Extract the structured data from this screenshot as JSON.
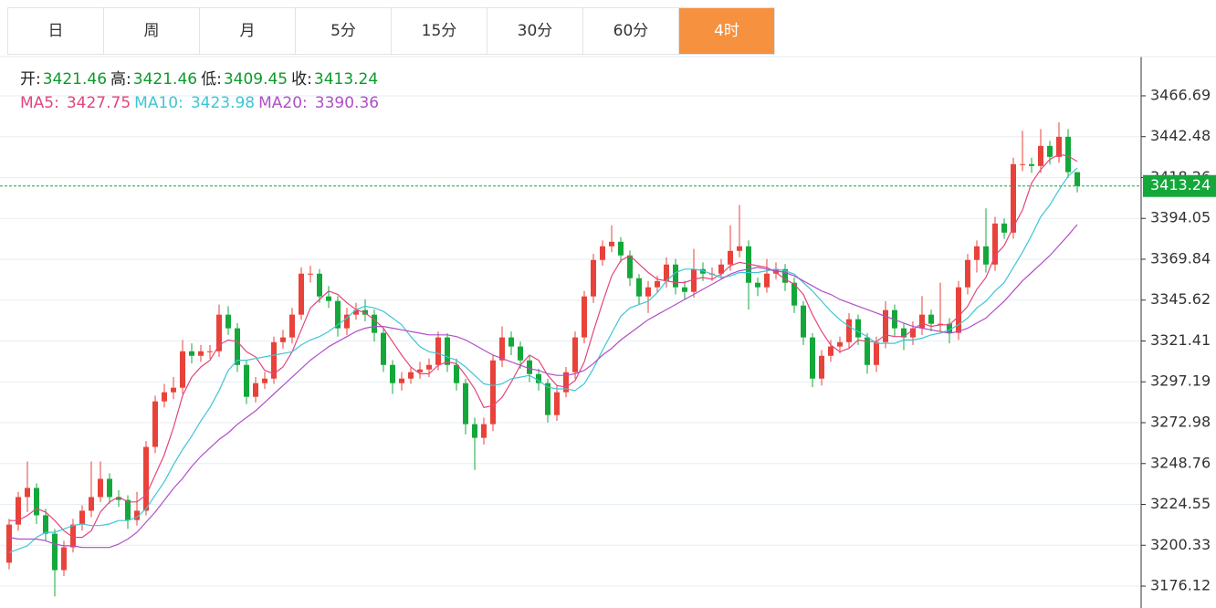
{
  "tabs": [
    "日",
    "周",
    "月",
    "5分",
    "15分",
    "30分",
    "60分",
    "4时"
  ],
  "active_tab": 7,
  "chart_data": {
    "type": "candlestick",
    "up_color": "#e8423a",
    "down_color": "#14a83b",
    "ohlc_labels": [
      "开:",
      "高:",
      "低:",
      "收:"
    ],
    "ylim": [
      3163.15,
      3489.93
    ],
    "yticks": [
      3466.69,
      3442.48,
      3418.26,
      3394.05,
      3369.84,
      3345.62,
      3321.41,
      3297.19,
      3272.98,
      3248.76,
      3224.55,
      3200.33,
      3176.12
    ],
    "grid": true,
    "ohlc": [
      [
        3190,
        3216,
        3186,
        3212.6
      ],
      [
        3212.6,
        3232,
        3209,
        3228.9
      ],
      [
        3228.9,
        3250,
        3220,
        3234.3
      ],
      [
        3234.3,
        3237,
        3213,
        3218.1
      ],
      [
        3218.1,
        3222,
        3203,
        3207.2
      ],
      [
        3207.2,
        3210,
        3170,
        3185.6
      ],
      [
        3185.6,
        3203,
        3182,
        3199.1
      ],
      [
        3199.1,
        3216,
        3196,
        3212.6
      ],
      [
        3212.6,
        3224,
        3209,
        3220.8
      ],
      [
        3220.8,
        3250,
        3217,
        3228.9
      ],
      [
        3228.9,
        3250,
        3226,
        3239.7
      ],
      [
        3239.7,
        3243,
        3225,
        3228.9
      ],
      [
        3228.9,
        3233,
        3223,
        3227.2
      ],
      [
        3227.2,
        3230,
        3210,
        3215.3
      ],
      [
        3215.3,
        3232,
        3212,
        3220.8
      ],
      [
        3220.8,
        3262,
        3218,
        3258.6
      ],
      [
        3258.6,
        3289,
        3255,
        3285.6
      ],
      [
        3285.6,
        3296,
        3282,
        3291.0
      ],
      [
        3291.0,
        3300,
        3287,
        3293.7
      ],
      [
        3293.7,
        3322,
        3290,
        3315.3
      ],
      [
        3315.3,
        3320,
        3308,
        3312.6
      ],
      [
        3312.6,
        3319,
        3309,
        3315.3
      ],
      [
        3315.3,
        3319,
        3311,
        3315.3
      ],
      [
        3315.3,
        3343,
        3312,
        3337.0
      ],
      [
        3337.0,
        3342,
        3325,
        3328.9
      ],
      [
        3328.9,
        3332,
        3303,
        3307.2
      ],
      [
        3307.2,
        3310,
        3284,
        3288.3
      ],
      [
        3288.3,
        3300,
        3285,
        3296.4
      ],
      [
        3296.4,
        3303,
        3293,
        3299.1
      ],
      [
        3299.1,
        3324,
        3296,
        3320.7
      ],
      [
        3320.7,
        3328,
        3317,
        3323.5
      ],
      [
        3323.5,
        3341,
        3320,
        3337.0
      ],
      [
        3337.0,
        3365,
        3334,
        3361.3
      ],
      [
        3361.3,
        3366,
        3356,
        3361.3
      ],
      [
        3361.3,
        3364,
        3344,
        3347.8
      ],
      [
        3347.8,
        3354,
        3341,
        3345.1
      ],
      [
        3345.1,
        3348,
        3324,
        3328.9
      ],
      [
        3328.9,
        3341,
        3325,
        3337.0
      ],
      [
        3337.0,
        3344,
        3334,
        3339.7
      ],
      [
        3339.7,
        3346,
        3333,
        3337.0
      ],
      [
        3337.0,
        3340,
        3321,
        3326.2
      ],
      [
        3326.2,
        3329,
        3303,
        3307.2
      ],
      [
        3307.2,
        3310,
        3290,
        3296.4
      ],
      [
        3296.4,
        3303,
        3292,
        3299.1
      ],
      [
        3299.1,
        3306,
        3296,
        3302.9
      ],
      [
        3302.9,
        3309,
        3299,
        3304.5
      ],
      [
        3304.5,
        3311,
        3300,
        3307.2
      ],
      [
        3307.2,
        3327,
        3304,
        3323.5
      ],
      [
        3323.5,
        3326,
        3303,
        3307.2
      ],
      [
        3307.2,
        3311,
        3292,
        3296.4
      ],
      [
        3296.4,
        3299,
        3266,
        3272.1
      ],
      [
        3272.1,
        3276,
        3245,
        3264.0
      ],
      [
        3264.0,
        3276,
        3260,
        3272.1
      ],
      [
        3272.1,
        3313,
        3268,
        3309.9
      ],
      [
        3309.9,
        3330,
        3306,
        3323.5
      ],
      [
        3323.5,
        3327,
        3313,
        3318.1
      ],
      [
        3318.1,
        3321,
        3305,
        3309.9
      ],
      [
        3309.9,
        3313,
        3297,
        3301.8
      ],
      [
        3301.8,
        3305,
        3292,
        3296.4
      ],
      [
        3296.4,
        3299,
        3273,
        3277.5
      ],
      [
        3277.5,
        3295,
        3274,
        3291.0
      ],
      [
        3291.0,
        3306,
        3288,
        3302.9
      ],
      [
        3302.9,
        3327,
        3299,
        3323.5
      ],
      [
        3323.5,
        3351,
        3320,
        3347.8
      ],
      [
        3347.8,
        3373,
        3344,
        3369.4
      ],
      [
        3369.4,
        3381,
        3366,
        3377.5
      ],
      [
        3377.5,
        3390,
        3374,
        3380.2
      ],
      [
        3380.2,
        3383,
        3368,
        3372.1
      ],
      [
        3372.1,
        3375,
        3354,
        3358.6
      ],
      [
        3358.6,
        3361,
        3343,
        3347.8
      ],
      [
        3347.8,
        3357,
        3338,
        3353.2
      ],
      [
        3353.2,
        3360,
        3350,
        3356.9
      ],
      [
        3356.9,
        3371,
        3353,
        3366.7
      ],
      [
        3366.7,
        3370,
        3349,
        3353.2
      ],
      [
        3353.2,
        3357,
        3346,
        3350.5
      ],
      [
        3350.5,
        3376,
        3347,
        3364.0
      ],
      [
        3364.0,
        3368,
        3357,
        3361.3
      ],
      [
        3361.3,
        3365,
        3357,
        3361.3
      ],
      [
        3361.3,
        3370,
        3358,
        3366.7
      ],
      [
        3366.7,
        3390,
        3363,
        3374.8
      ],
      [
        3374.8,
        3402,
        3371,
        3377.5
      ],
      [
        3377.5,
        3381,
        3340,
        3355.9
      ],
      [
        3355.9,
        3359,
        3348,
        3353.2
      ],
      [
        3353.2,
        3370,
        3350,
        3361.3
      ],
      [
        3361.3,
        3368,
        3358,
        3364.0
      ],
      [
        3364.0,
        3367,
        3351,
        3355.9
      ],
      [
        3355.9,
        3359,
        3338,
        3342.4
      ],
      [
        3342.4,
        3345,
        3319,
        3323.5
      ],
      [
        3323.5,
        3326,
        3294,
        3299.1
      ],
      [
        3299.1,
        3316,
        3295,
        3312.6
      ],
      [
        3312.6,
        3322,
        3309,
        3318.1
      ],
      [
        3318.1,
        3324,
        3314,
        3320.7
      ],
      [
        3320.7,
        3338,
        3317,
        3334.3
      ],
      [
        3334.3,
        3337,
        3319,
        3323.5
      ],
      [
        3323.5,
        3326,
        3302,
        3307.2
      ],
      [
        3307.2,
        3324,
        3303,
        3320.7
      ],
      [
        3320.7,
        3345,
        3317,
        3339.7
      ],
      [
        3339.7,
        3343,
        3324,
        3328.9
      ],
      [
        3328.9,
        3332,
        3316,
        3323.5
      ],
      [
        3323.5,
        3333,
        3319,
        3328.9
      ],
      [
        3328.9,
        3348,
        3325,
        3337.0
      ],
      [
        3337.0,
        3340,
        3327,
        3331.6
      ],
      [
        3331.6,
        3356,
        3327,
        3331.6
      ],
      [
        3331.6,
        3335,
        3320,
        3326.2
      ],
      [
        3326.2,
        3357,
        3322,
        3353.2
      ],
      [
        3353.2,
        3373,
        3349,
        3369.4
      ],
      [
        3369.4,
        3381,
        3362,
        3377.5
      ],
      [
        3377.5,
        3400,
        3362,
        3366.7
      ],
      [
        3366.7,
        3395,
        3363,
        3391.0
      ],
      [
        3391.0,
        3394,
        3382,
        3385.6
      ],
      [
        3385.6,
        3430,
        3382,
        3426.2
      ],
      [
        3426.2,
        3446,
        3422,
        3426.2
      ],
      [
        3426.2,
        3430,
        3421,
        3425.1
      ],
      [
        3425.1,
        3447,
        3421,
        3437.0
      ],
      [
        3437.0,
        3440,
        3426,
        3430.5
      ],
      [
        3430.5,
        3451,
        3427,
        3442.4
      ],
      [
        3442.4,
        3447,
        3418,
        3421.46
      ],
      [
        3421.46,
        3421.46,
        3409.45,
        3413.24
      ]
    ],
    "series": [
      {
        "name": "MA5:",
        "color": "#e3457d",
        "values": [
          3215,
          3215,
          3218,
          3222,
          3220,
          3215,
          3209,
          3205,
          3205,
          3209,
          3220,
          3226,
          3229,
          3226,
          3226,
          3230,
          3242,
          3254,
          3270,
          3289,
          3300,
          3306,
          3310,
          3319,
          3322,
          3321,
          3315,
          3312,
          3304,
          3302,
          3306,
          3315,
          3328,
          3341,
          3346,
          3351,
          3349,
          3344,
          3340,
          3338,
          3334,
          3329,
          3321,
          3313,
          3306,
          3302,
          3302,
          3307,
          3309,
          3308,
          3301,
          3293,
          3282,
          3283,
          3288,
          3297,
          3307,
          3313,
          3310,
          3301,
          3295,
          3294,
          3298,
          3309,
          3327,
          3344,
          3360,
          3369,
          3372,
          3367,
          3362,
          3358,
          3357,
          3356,
          3356,
          3358,
          3359,
          3358,
          3361,
          3366,
          3368,
          3367,
          3366,
          3365,
          3362,
          3358,
          3355,
          3349,
          3337,
          3327,
          3319,
          3315,
          3317,
          3322,
          3321,
          3321,
          3325,
          3324,
          3324,
          3328,
          3332,
          3330,
          3331,
          3331,
          3336,
          3342,
          3352,
          3359,
          3372,
          3378,
          3389,
          3399,
          3415,
          3423,
          3429,
          3432,
          3431,
          3427.75
        ]
      },
      {
        "name": "MA10:",
        "color": "#3ec5d5",
        "values": [
          3196,
          3198,
          3200,
          3205,
          3208,
          3208,
          3210,
          3212,
          3213,
          3212,
          3212,
          3213,
          3215,
          3215,
          3217,
          3222,
          3230,
          3238,
          3248,
          3257,
          3265,
          3274,
          3282,
          3292,
          3304,
          3310,
          3310,
          3311,
          3312,
          3313,
          3314,
          3315,
          3319,
          3322,
          3324,
          3327,
          3331,
          3335,
          3340,
          3342,
          3341,
          3339,
          3335,
          3331,
          3324,
          3318,
          3315,
          3314,
          3312,
          3310,
          3306,
          3301,
          3296,
          3295,
          3296,
          3299,
          3300,
          3301,
          3298,
          3294,
          3293,
          3293,
          3292,
          3296,
          3305,
          3316,
          3326,
          3336,
          3341,
          3343,
          3345,
          3350,
          3357,
          3362,
          3364,
          3364,
          3363,
          3361,
          3359,
          3360,
          3362,
          3362,
          3362,
          3363,
          3364,
          3363,
          3361,
          3356,
          3351,
          3345,
          3339,
          3334,
          3330,
          3327,
          3324,
          3320,
          3320,
          3320,
          3322,
          3322,
          3323,
          3325,
          3326,
          3328,
          3331,
          3335,
          3341,
          3345,
          3351,
          3356,
          3365,
          3374,
          3384,
          3395,
          3402,
          3411,
          3419,
          3423.98
        ]
      },
      {
        "name": "MA20:",
        "color": "#b14ec8",
        "values": [
          3205,
          3204,
          3204,
          3204,
          3203,
          3201,
          3200,
          3200,
          3199,
          3199,
          3199,
          3199,
          3201,
          3204,
          3208,
          3214,
          3220,
          3227,
          3234,
          3240,
          3247,
          3253,
          3258,
          3263,
          3267,
          3272,
          3276,
          3280,
          3285,
          3290,
          3295,
          3300,
          3305,
          3310,
          3314,
          3318,
          3321,
          3324,
          3327,
          3329,
          3330,
          3330,
          3329,
          3328,
          3327,
          3326,
          3325,
          3325,
          3325,
          3324,
          3322,
          3319,
          3316,
          3313,
          3311,
          3309,
          3307,
          3305,
          3304,
          3302,
          3301,
          3301,
          3302,
          3304,
          3308,
          3313,
          3317,
          3322,
          3326,
          3330,
          3334,
          3337,
          3340,
          3343,
          3346,
          3349,
          3352,
          3355,
          3358,
          3361,
          3363,
          3364,
          3365,
          3364,
          3363,
          3362,
          3360,
          3357,
          3354,
          3351,
          3349,
          3346,
          3344,
          3342,
          3340,
          3338,
          3336,
          3334,
          3332,
          3330,
          3329,
          3328,
          3327,
          3326,
          3327,
          3329,
          3332,
          3335,
          3340,
          3345,
          3351,
          3357,
          3362,
          3367,
          3372,
          3378,
          3384,
          3390.36
        ]
      }
    ]
  }
}
